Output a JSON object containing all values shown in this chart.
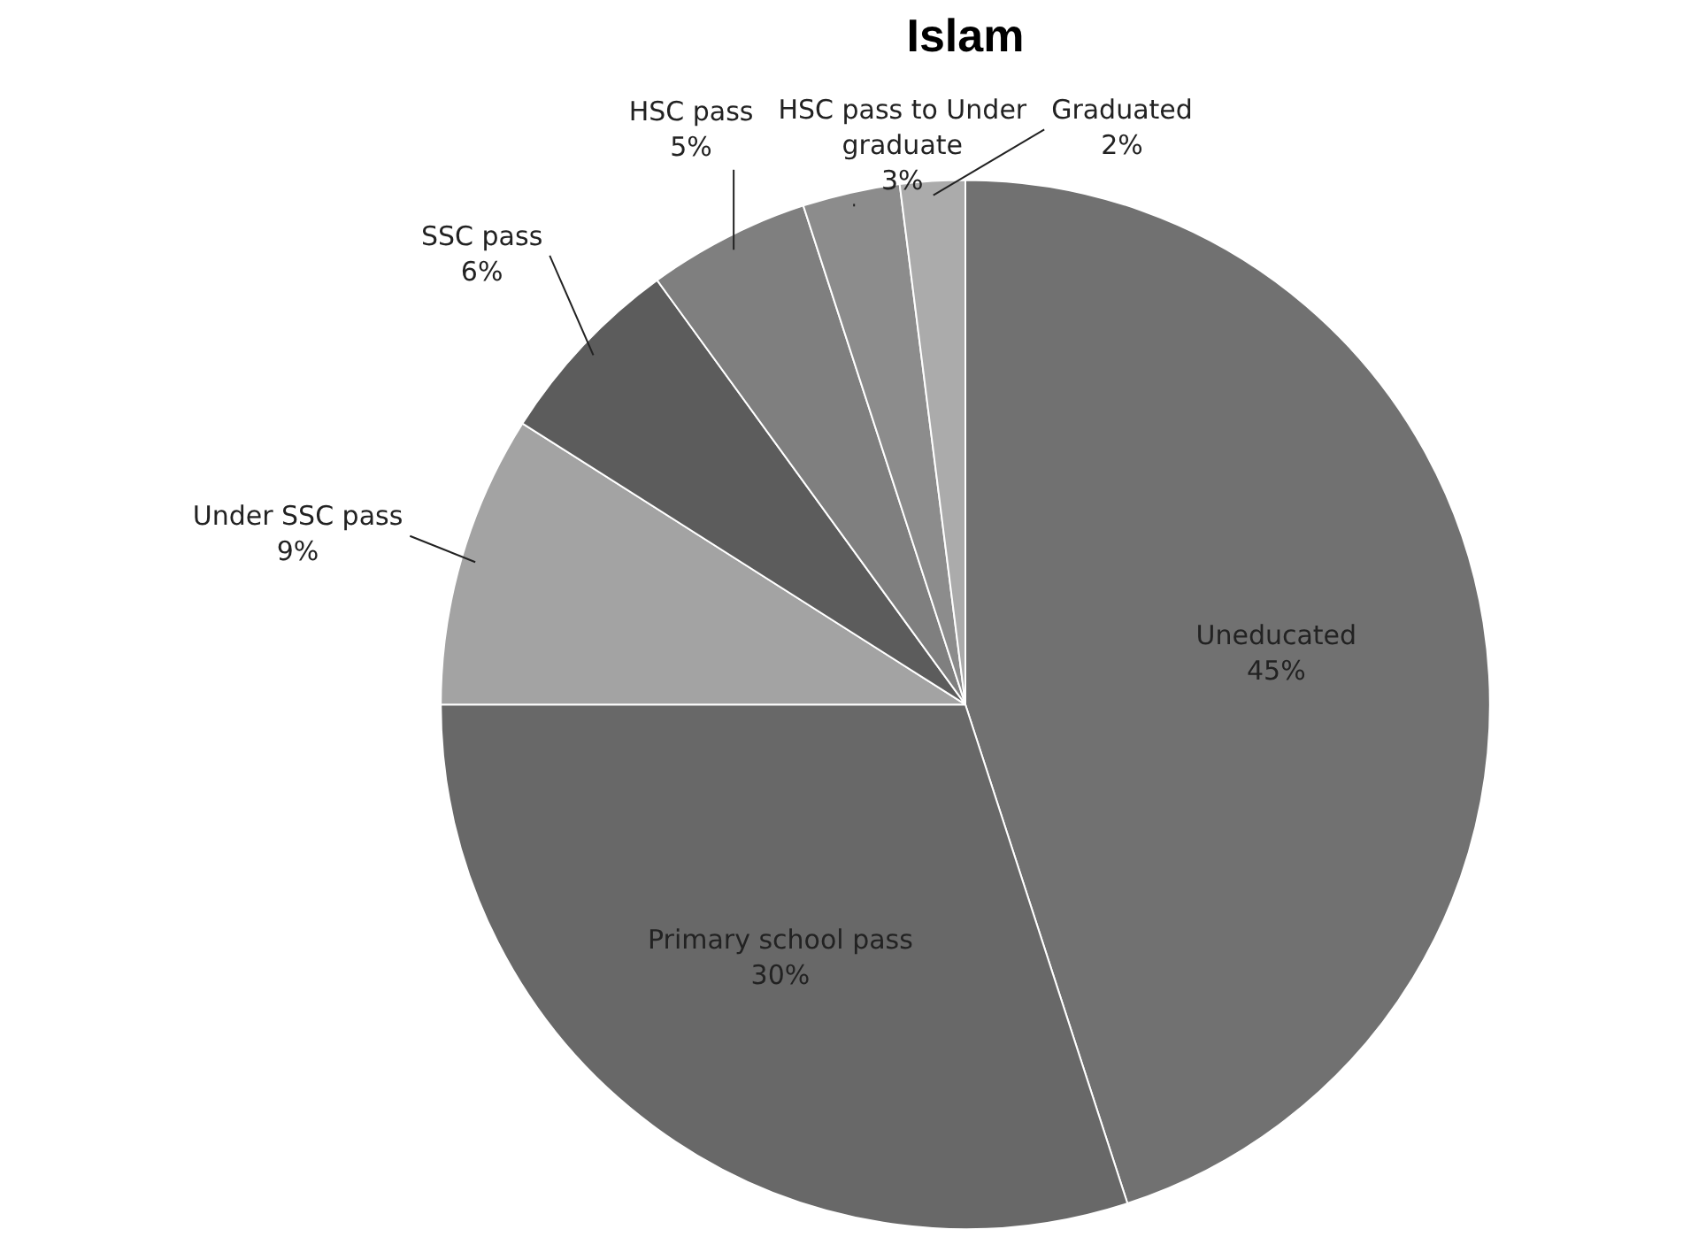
{
  "chart_data": {
    "type": "pie",
    "title": "Islam",
    "categories": [
      "Uneducated",
      "Primary school pass",
      "Under SSC pass",
      "SSC pass",
      "HSC pass",
      "HSC pass to Under graduate",
      "Graduated"
    ],
    "values": [
      45,
      30,
      9,
      6,
      5,
      3,
      2
    ],
    "value_labels": [
      "45%",
      "30%",
      "9%",
      "6%",
      "5%",
      "3%",
      "2%"
    ],
    "colors": [
      "#717171",
      "#686868",
      "#a3a3a3",
      "#5c5c5c",
      "#7f7f7f",
      "#8c8c8c",
      "#ababab"
    ],
    "legend": false
  }
}
